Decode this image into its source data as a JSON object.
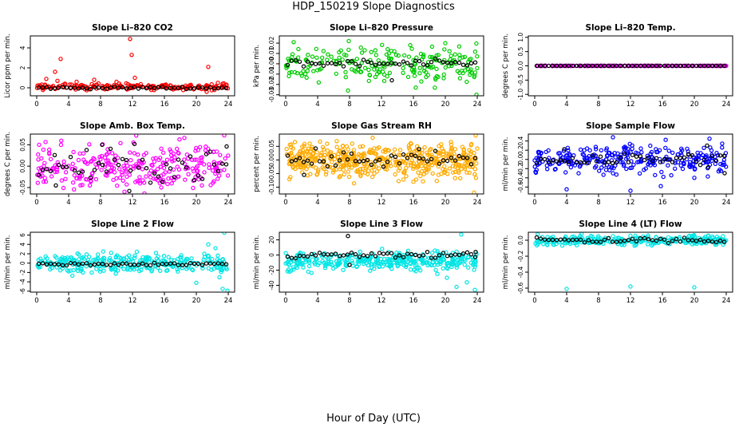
{
  "figure": {
    "title": "HDP_150219  Slope Diagnostics",
    "xlabel": "Hour of Day (UTC)"
  },
  "chart_data": [
    {
      "type": "scatter",
      "title": "Slope Li–820 CO2",
      "ylabel": "Licor ppm per min.",
      "color": "#ff0000",
      "xlim": [
        -0.8,
        24.8
      ],
      "ylim": [
        -0.8,
        5.2
      ],
      "xticks": [
        0,
        4,
        8,
        12,
        16,
        20,
        24
      ],
      "yticks": [
        0,
        2,
        4
      ],
      "series": [
        {
          "name": "colored",
          "pattern": {
            "center": 0.1,
            "spread": 0.15,
            "count": 200
          },
          "outliers": [
            [
              1.2,
              0.9
            ],
            [
              2.3,
              1.6
            ],
            [
              3.0,
              2.9
            ],
            [
              2.6,
              0.7
            ],
            [
              5.0,
              0.6
            ],
            [
              7.2,
              0.8
            ],
            [
              10.0,
              0.6
            ],
            [
              11.7,
              4.9
            ],
            [
              11.9,
              3.3
            ],
            [
              12.3,
              1.0
            ],
            [
              21.5,
              2.1
            ],
            [
              21.3,
              -0.4
            ],
            [
              22.7,
              0.5
            ]
          ]
        },
        {
          "name": "black",
          "pattern": {
            "center": 0.0,
            "spread": 0.06,
            "count": 48
          },
          "outliers": []
        }
      ]
    },
    {
      "type": "scatter",
      "title": "Slope Li–820 Pressure",
      "ylabel": "kPa per min.",
      "color": "#00cc00",
      "xlim": [
        -0.8,
        24.8
      ],
      "ylim": [
        -0.031,
        0.027
      ],
      "xticks": [
        0,
        4,
        8,
        12,
        16,
        20,
        24
      ],
      "yticks": [
        -0.03,
        -0.02,
        -0.01,
        0.0,
        0.01,
        0.02
      ],
      "series": [
        {
          "name": "colored",
          "pattern": {
            "center": 0.0,
            "spread": 0.008,
            "count": 220
          },
          "outliers": [
            [
              1.0,
              0.021
            ],
            [
              7.8,
              -0.026
            ],
            [
              7.9,
              0.022
            ],
            [
              16.3,
              -0.023
            ],
            [
              15.6,
              0.018
            ],
            [
              23.9,
              -0.03
            ],
            [
              20.0,
              0.02
            ],
            [
              0.4,
              -0.012
            ]
          ]
        },
        {
          "name": "black",
          "pattern": {
            "center": 0.0,
            "spread": 0.002,
            "count": 48
          },
          "outliers": [
            [
              13.3,
              -0.016
            ]
          ]
        }
      ]
    },
    {
      "type": "scatter",
      "title": "Slope Li–820 Temp.",
      "ylabel": "degrees C per min.",
      "color": "#cc00cc",
      "xlim": [
        -0.8,
        24.8
      ],
      "ylim": [
        -1.05,
        1.05
      ],
      "xticks": [
        0,
        4,
        8,
        12,
        16,
        20,
        24
      ],
      "yticks": [
        -1.0,
        -0.5,
        0.0,
        0.5,
        1.0
      ],
      "series": [
        {
          "name": "colored",
          "pattern": {
            "center": 0.0,
            "spread": 0.0,
            "count": 200
          },
          "outliers": []
        },
        {
          "name": "black",
          "pattern": {
            "center": 0.0,
            "spread": 0.0,
            "count": 48
          },
          "outliers": []
        }
      ]
    },
    {
      "type": "scatter",
      "title": "Slope Amb. Box Temp.",
      "ylabel": "degrees C per min.",
      "color": "#ff00ff",
      "xlim": [
        -0.8,
        24.8
      ],
      "ylim": [
        -0.065,
        0.075
      ],
      "xticks": [
        0,
        4,
        8,
        12,
        16,
        20,
        24
      ],
      "yticks": [
        -0.05,
        0.0,
        0.05
      ],
      "series": [
        {
          "name": "colored",
          "pattern": {
            "center": 0.0,
            "spread": 0.028,
            "count": 300
          },
          "outliers": [
            [
              11.0,
              -0.06
            ],
            [
              23.5,
              0.072
            ],
            [
              18.5,
              0.066
            ],
            [
              0.3,
              0.05
            ]
          ]
        },
        {
          "name": "black",
          "pattern": {
            "center": 0.0,
            "spread": 0.02,
            "count": 48
          },
          "outliers": [
            [
              8.2,
              0.05
            ],
            [
              2.4,
              -0.045
            ],
            [
              11.6,
              -0.058
            ],
            [
              23.8,
              0.046
            ]
          ]
        }
      ]
    },
    {
      "type": "scatter",
      "title": "Slope Gas Stream RH",
      "ylabel": "percent per min.",
      "color": "#ffaa00",
      "xlim": [
        -0.8,
        24.8
      ],
      "ylim": [
        -0.125,
        0.095
      ],
      "xticks": [
        0,
        4,
        8,
        12,
        16,
        20,
        24
      ],
      "yticks": [
        -0.1,
        -0.05,
        0.0,
        0.05
      ],
      "series": [
        {
          "name": "colored",
          "pattern": {
            "center": 0.0,
            "spread": 0.03,
            "count": 500
          },
          "outliers": [
            [
              23.6,
              -0.12
            ],
            [
              23.8,
              0.09
            ],
            [
              3.0,
              0.06
            ],
            [
              16.0,
              -0.08
            ]
          ]
        },
        {
          "name": "black",
          "pattern": {
            "center": 0.0,
            "spread": 0.015,
            "count": 48
          },
          "outliers": [
            [
              2.3,
              -0.055
            ],
            [
              16.7,
              0.04
            ]
          ]
        }
      ]
    },
    {
      "type": "scatter",
      "title": "Slope Sample Flow",
      "ylabel": "ml/min per min.",
      "color": "#0000ff",
      "xlim": [
        -0.8,
        24.8
      ],
      "ylim": [
        -0.75,
        0.55
      ],
      "xticks": [
        0,
        4,
        8,
        12,
        16,
        20,
        24
      ],
      "yticks": [
        -0.6,
        -0.4,
        -0.2,
        0.0,
        0.2,
        0.4
      ],
      "series": [
        {
          "name": "colored",
          "pattern": {
            "center": 0.0,
            "spread": 0.15,
            "count": 300
          },
          "outliers": [
            [
              4.0,
              -0.65
            ],
            [
              12.0,
              -0.68
            ],
            [
              15.8,
              -0.58
            ],
            [
              9.8,
              0.48
            ],
            [
              21.9,
              0.45
            ],
            [
              20.0,
              -0.4
            ]
          ]
        },
        {
          "name": "black",
          "pattern": {
            "center": 0.0,
            "spread": 0.08,
            "count": 48
          },
          "outliers": [
            [
              3.7,
              0.22
            ],
            [
              21.6,
              0.3
            ],
            [
              23.8,
              -0.3
            ]
          ]
        }
      ]
    },
    {
      "type": "scatter",
      "title": "Slope Line 2 Flow",
      "ylabel": "ml/min per min.",
      "color": "#00e5e5",
      "xlim": [
        -0.8,
        24.8
      ],
      "ylim": [
        -6.2,
        6.6
      ],
      "xticks": [
        0,
        4,
        8,
        12,
        16,
        20,
        24
      ],
      "yticks": [
        -6,
        -4,
        -2,
        0,
        2,
        4,
        6
      ],
      "series": [
        {
          "name": "colored",
          "pattern": {
            "center": 0.0,
            "spread": 1.0,
            "count": 300
          },
          "outliers": [
            [
              23.5,
              6.5
            ],
            [
              23.3,
              -5.5
            ],
            [
              20.0,
              -4.2
            ],
            [
              21.5,
              4.0
            ],
            [
              22.4,
              3.2
            ],
            [
              22.9,
              -3.0
            ],
            [
              23.9,
              -5.9
            ],
            [
              21.0,
              2.0
            ]
          ]
        },
        {
          "name": "black",
          "pattern": {
            "center": -0.2,
            "spread": 0.15,
            "count": 48
          },
          "outliers": []
        }
      ]
    },
    {
      "type": "scatter",
      "title": "Slope Line 3 Flow",
      "ylabel": "ml/min per min.",
      "color": "#00e5e5",
      "xlim": [
        -0.8,
        24.8
      ],
      "ylim": [
        -49,
        30
      ],
      "xticks": [
        0,
        4,
        8,
        12,
        16,
        20,
        24
      ],
      "yticks": [
        -40,
        -20,
        0,
        20
      ],
      "series": [
        {
          "name": "colored",
          "pattern": {
            "center": -8.0,
            "spread": 6.0,
            "count": 360
          },
          "outliers": [
            [
              22.0,
              27.0
            ],
            [
              21.4,
              -42.0
            ],
            [
              22.7,
              -36.0
            ],
            [
              20.2,
              -30.0
            ],
            [
              23.7,
              -46.0
            ],
            [
              0.5,
              -22.0
            ],
            [
              19.0,
              -25.0
            ]
          ]
        },
        {
          "name": "black",
          "pattern": {
            "center": 0.0,
            "spread": 2.0,
            "count": 48
          },
          "outliers": [
            [
              7.8,
              25.0
            ],
            [
              8.0,
              -13.0
            ],
            [
              23.8,
              4.0
            ]
          ]
        }
      ]
    },
    {
      "type": "scatter",
      "title": "Slope Line 4 (LT) Flow",
      "ylabel": "ml/min per min.",
      "color": "#00e5e5",
      "xlim": [
        -0.8,
        24.8
      ],
      "ylim": [
        -0.65,
        0.1
      ],
      "xticks": [
        0,
        4,
        8,
        12,
        16,
        20,
        24
      ],
      "yticks": [
        -0.6,
        -0.4,
        -0.2,
        0.0
      ],
      "series": [
        {
          "name": "colored",
          "pattern": {
            "center": 0.0,
            "spread": 0.03,
            "count": 300
          },
          "outliers": [
            [
              4.0,
              -0.61
            ],
            [
              12.0,
              -0.58
            ],
            [
              20.0,
              -0.59
            ]
          ]
        },
        {
          "name": "black",
          "pattern": {
            "center": 0.0,
            "spread": 0.02,
            "count": 48
          },
          "outliers": []
        }
      ]
    }
  ]
}
